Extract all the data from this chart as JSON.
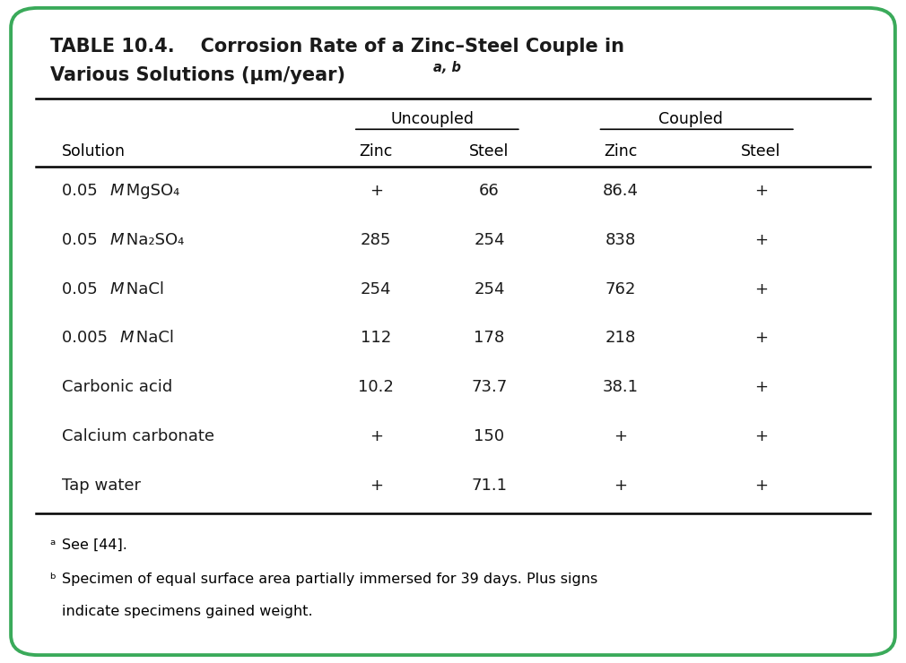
{
  "title_line1": "TABLE 10.4.    Corrosion Rate of a Zinc–Steel Couple in",
  "title_line2": "Various Solutions (μm/year)",
  "title_sup": "a, b",
  "col_sol": 0.068,
  "col_uz": 0.415,
  "col_us": 0.54,
  "col_cz": 0.685,
  "col_cs": 0.84,
  "rows": [
    {
      "solution_pre": "0.05 ",
      "solution_M": "M",
      "solution_post": " MgSO₄",
      "unc_zinc": "+",
      "unc_steel": "66",
      "cou_zinc": "86.4",
      "cou_steel": "+"
    },
    {
      "solution_pre": "0.05 ",
      "solution_M": "M",
      "solution_post": " Na₂SO₄",
      "unc_zinc": "285",
      "unc_steel": "254",
      "cou_zinc": "838",
      "cou_steel": "+"
    },
    {
      "solution_pre": "0.05 ",
      "solution_M": "M",
      "solution_post": " NaCl",
      "unc_zinc": "254",
      "unc_steel": "254",
      "cou_zinc": "762",
      "cou_steel": "+"
    },
    {
      "solution_pre": "0.005 ",
      "solution_M": "M",
      "solution_post": " NaCl",
      "unc_zinc": "112",
      "unc_steel": "178",
      "cou_zinc": "218",
      "cou_steel": "+"
    },
    {
      "solution_pre": "",
      "solution_M": "",
      "solution_post": "Carbonic acid",
      "unc_zinc": "10.2",
      "unc_steel": "73.7",
      "cou_zinc": "38.1",
      "cou_steel": "+"
    },
    {
      "solution_pre": "",
      "solution_M": "",
      "solution_post": "Calcium carbonate",
      "unc_zinc": "+",
      "unc_steel": "150",
      "cou_zinc": "+",
      "cou_steel": "+"
    },
    {
      "solution_pre": "",
      "solution_M": "",
      "solution_post": "Tap water",
      "unc_zinc": "+",
      "unc_steel": "71.1",
      "cou_zinc": "+",
      "cou_steel": "+"
    }
  ],
  "bg_color": "#ffffff",
  "border_color": "#3aaa5a",
  "text_color": "#1a1a1a",
  "title_color": "#1a1a1a",
  "footnote_a": "See [44].",
  "footnote_b1": "Specimen of equal surface area partially immersed for 39 days. Plus signs",
  "footnote_b2": "indicate specimens gained weight."
}
